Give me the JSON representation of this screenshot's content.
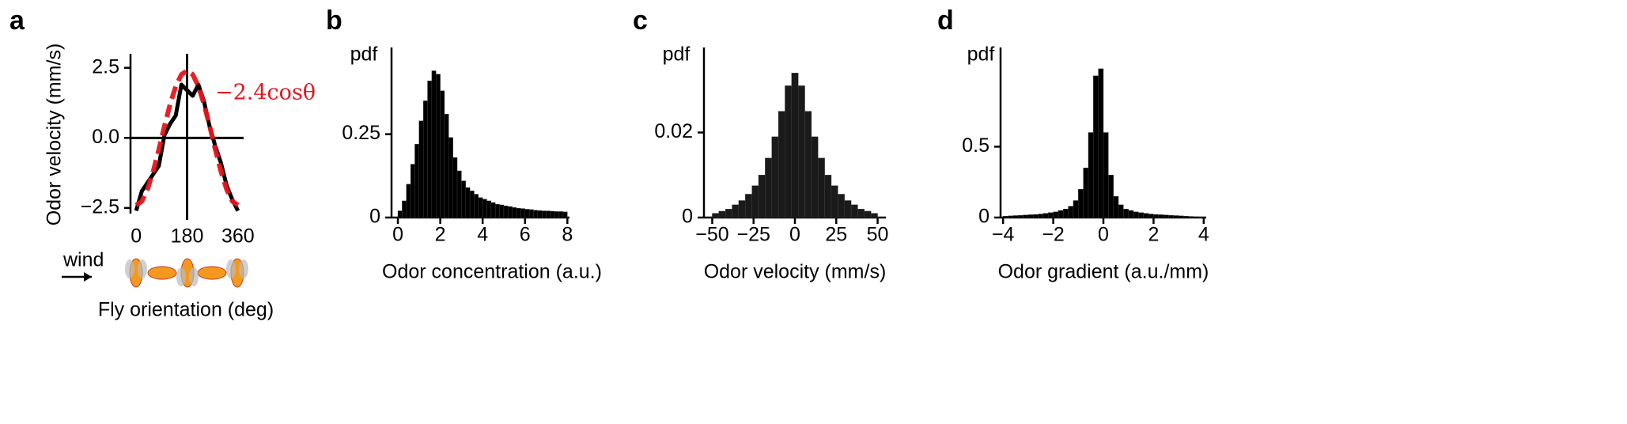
{
  "chart_data": [
    {
      "type": "line",
      "panel_label": "a",
      "xlabel": "Fly orientation (deg)",
      "ylabel": "Odor velocity (mm/s)",
      "fit_label": "−2.4cosθ",
      "wind_label": "wind",
      "x": [
        0,
        20,
        40,
        60,
        80,
        100,
        120,
        140,
        160,
        180,
        200,
        220,
        240,
        260,
        280,
        300,
        320,
        340,
        360
      ],
      "series": [
        {
          "color": "#000000",
          "values": [
            -2.6,
            -1.9,
            -1.6,
            -1.3,
            -1.0,
            0.1,
            0.5,
            0.8,
            1.9,
            1.7,
            1.5,
            1.9,
            1.3,
            0.4,
            -0.3,
            -0.9,
            -1.7,
            -2.2,
            -2.6
          ]
        },
        {
          "name": "−2.4cosθ",
          "color": "#e8141c",
          "dashed": true,
          "values": [
            -2.4,
            -2.26,
            -1.84,
            -1.2,
            -0.42,
            0.42,
            1.2,
            1.84,
            2.26,
            2.4,
            2.26,
            1.84,
            1.2,
            0.42,
            -0.42,
            -1.2,
            -1.84,
            -2.26,
            -2.4
          ]
        }
      ],
      "xlim": [
        -20,
        380
      ],
      "xticks": [
        0,
        180,
        360
      ],
      "ylim": [
        -2.7,
        3.0
      ],
      "yticks": [
        {
          "value": -2.5,
          "label": "−2.5"
        },
        {
          "value": 0,
          "label": "0.0"
        },
        {
          "value": 2.5,
          "label": "2.5"
        }
      ]
    },
    {
      "type": "histogram",
      "panel_label": "b",
      "xlabel": "Odor concentration (a.u.)",
      "ylabel": "pdf",
      "color": "#000000",
      "bins": [
        0,
        0.2,
        0.4,
        0.6,
        0.8,
        1,
        1.2,
        1.4,
        1.6,
        1.8,
        2,
        2.2,
        2.4,
        2.6,
        2.8,
        3,
        3.2,
        3.4,
        3.6,
        3.8,
        4,
        4.2,
        4.4,
        4.6,
        4.8,
        5,
        5.2,
        5.4,
        5.6,
        5.8,
        6,
        6.2,
        6.4,
        6.6,
        6.8,
        7,
        7.2,
        7.4,
        7.6,
        7.8,
        8
      ],
      "values": [
        0.02,
        0.05,
        0.1,
        0.16,
        0.22,
        0.29,
        0.35,
        0.41,
        0.44,
        0.43,
        0.38,
        0.31,
        0.24,
        0.18,
        0.14,
        0.11,
        0.09,
        0.08,
        0.07,
        0.06,
        0.055,
        0.05,
        0.045,
        0.04,
        0.038,
        0.035,
        0.033,
        0.03,
        0.028,
        0.027,
        0.025,
        0.024,
        0.022,
        0.021,
        0.02,
        0.02,
        0.019,
        0.018,
        0.018,
        0.017
      ],
      "xlim": [
        -0.3,
        8.1
      ],
      "xticks": [
        0,
        2,
        4,
        6,
        8
      ],
      "ylim": [
        0,
        0.51
      ],
      "yticks": [
        0,
        0.25
      ]
    },
    {
      "type": "histogram",
      "panel_label": "c",
      "xlabel": "Odor velocity (mm/s)",
      "ylabel": "pdf",
      "color": "#1a1a1a",
      "bins": [
        -50,
        -46,
        -42,
        -38,
        -34,
        -30,
        -26,
        -22,
        -18,
        -14,
        -10,
        -6,
        -2,
        2,
        6,
        10,
        14,
        18,
        22,
        26,
        30,
        34,
        38,
        42,
        46,
        50
      ],
      "values": [
        0.001,
        0.0015,
        0.002,
        0.003,
        0.004,
        0.0055,
        0.0075,
        0.01,
        0.014,
        0.019,
        0.025,
        0.031,
        0.034,
        0.031,
        0.025,
        0.019,
        0.014,
        0.01,
        0.0075,
        0.0055,
        0.004,
        0.003,
        0.002,
        0.0015,
        0.001
      ],
      "xlim": [
        -55,
        55
      ],
      "xticks": [
        {
          "value": -50,
          "label": "−50"
        },
        {
          "value": -25,
          "label": "−25"
        },
        0,
        25,
        50
      ],
      "ylim": [
        0,
        0.04
      ],
      "yticks": [
        0,
        0.02
      ]
    },
    {
      "type": "histogram",
      "panel_label": "d",
      "xlabel": "Odor gradient (a.u./mm)",
      "ylabel": "pdf",
      "color": "#000000",
      "bins": [
        -4,
        -3.8,
        -3.6,
        -3.4,
        -3.2,
        -3,
        -2.8,
        -2.6,
        -2.4,
        -2.2,
        -2,
        -1.8,
        -1.6,
        -1.4,
        -1.2,
        -1,
        -0.8,
        -0.6,
        -0.4,
        -0.2,
        0,
        0.2,
        0.4,
        0.6,
        0.8,
        1,
        1.2,
        1.4,
        1.6,
        1.8,
        2,
        2.2,
        2.4,
        2.6,
        2.8,
        3,
        3.2,
        3.4,
        3.6,
        3.8,
        4
      ],
      "values": [
        0.01,
        0.012,
        0.014,
        0.016,
        0.018,
        0.02,
        0.022,
        0.025,
        0.03,
        0.035,
        0.04,
        0.05,
        0.06,
        0.08,
        0.12,
        0.2,
        0.35,
        0.6,
        1.0,
        1.05,
        0.6,
        0.3,
        0.15,
        0.09,
        0.06,
        0.05,
        0.04,
        0.035,
        0.03,
        0.025,
        0.022,
        0.02,
        0.018,
        0.016,
        0.014,
        0.012,
        0.01,
        0.008,
        0.006,
        0.005
      ],
      "xlim": [
        -4.1,
        4.1
      ],
      "xticks": [
        {
          "value": -4,
          "label": "−4"
        },
        {
          "value": -2,
          "label": "−2"
        },
        0,
        2,
        4
      ],
      "ylim": [
        0,
        1.2
      ],
      "yticks": [
        0,
        0.5
      ]
    }
  ]
}
